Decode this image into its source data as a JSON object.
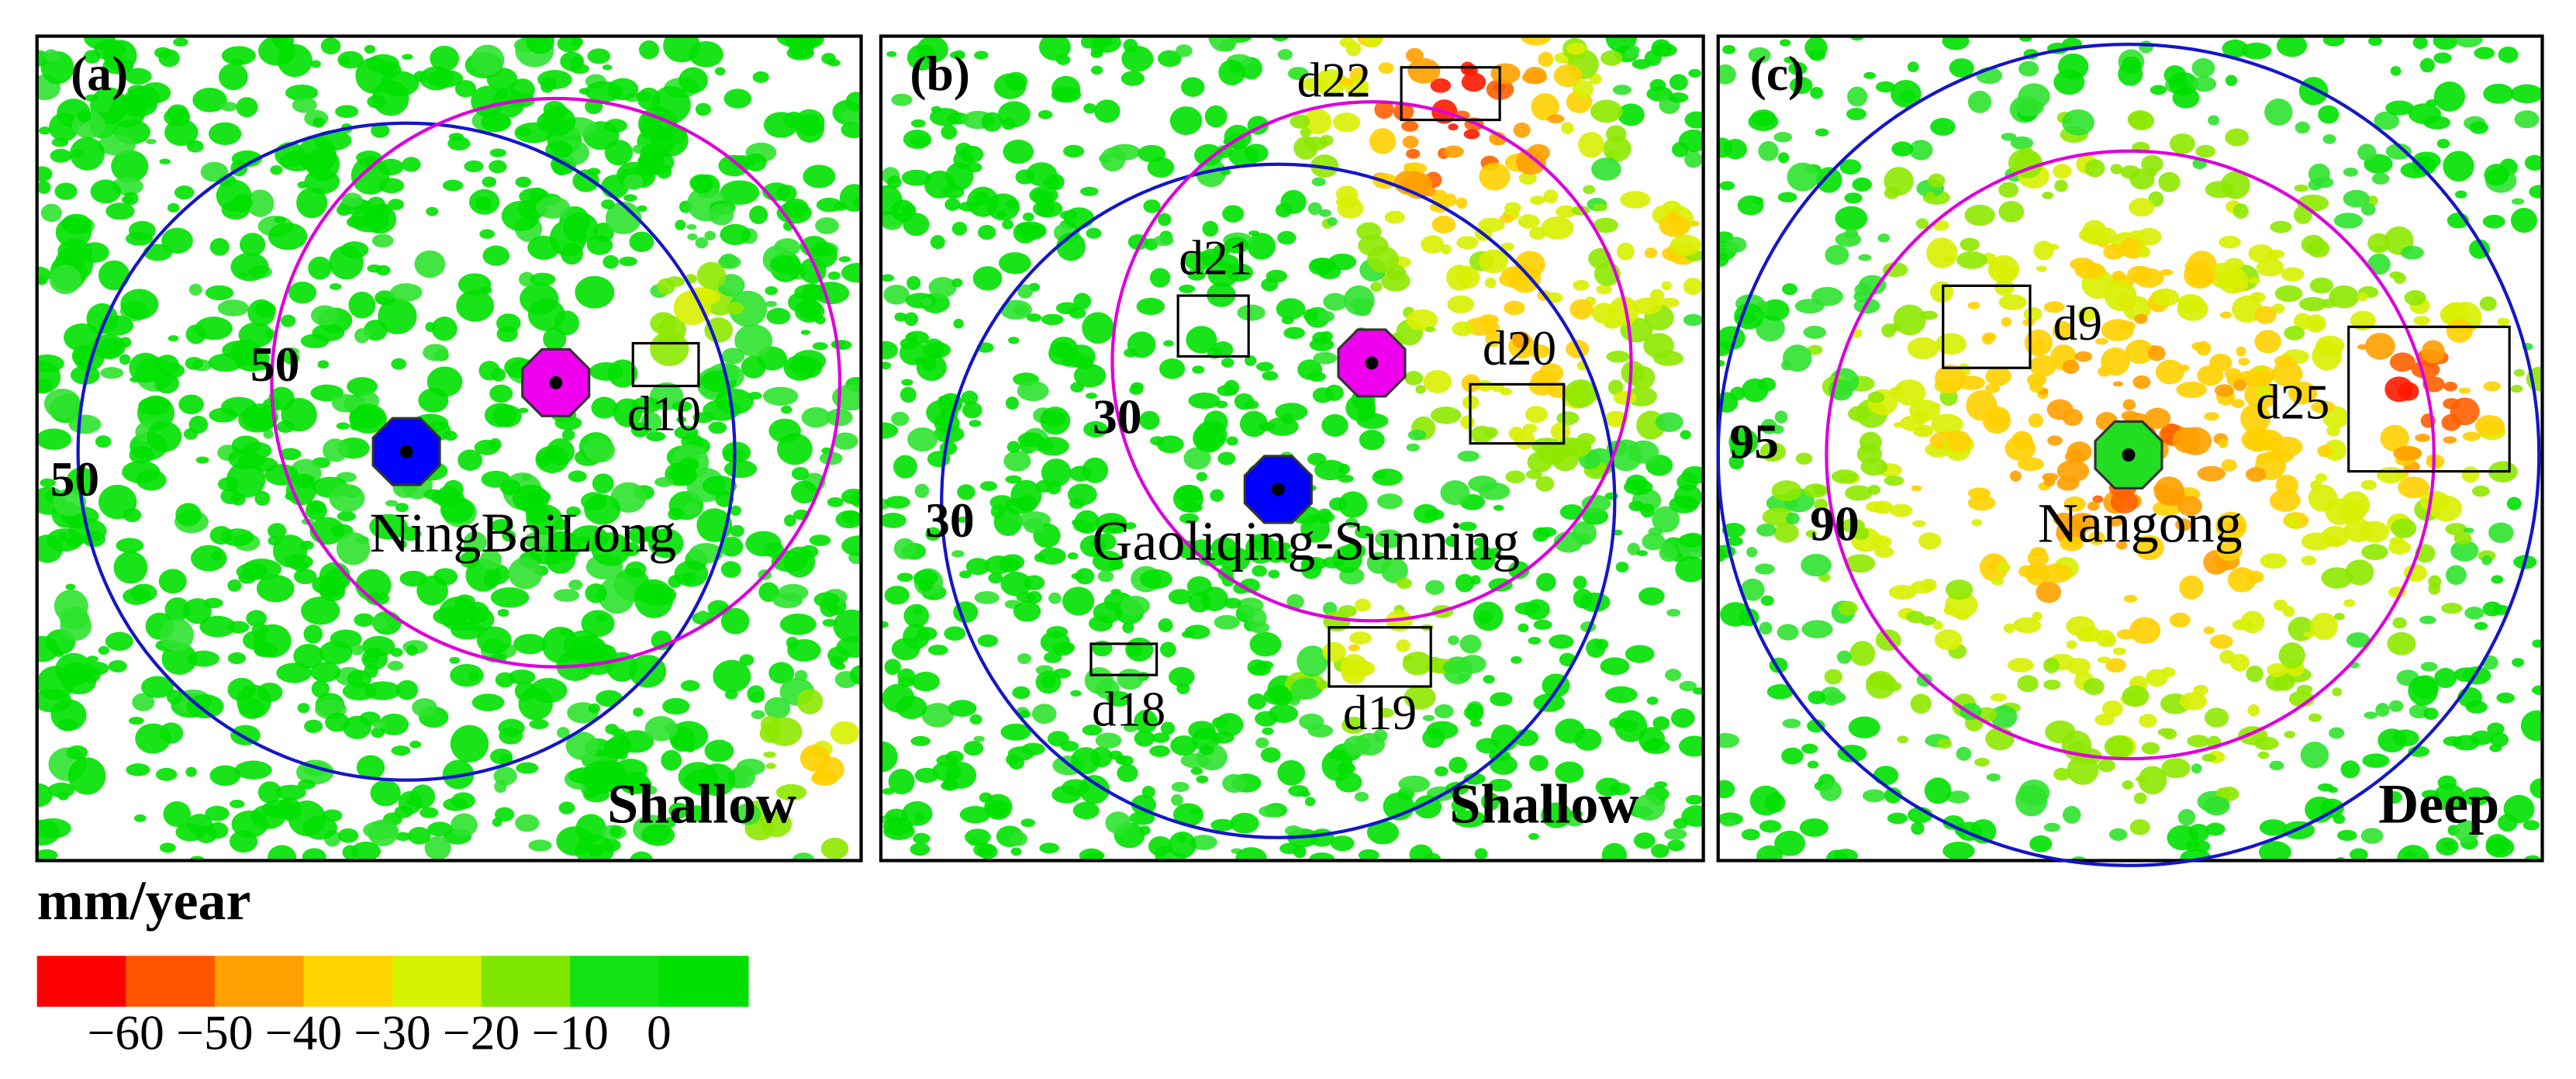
{
  "panels": [
    {
      "label": "(a)",
      "layer": "Shallow",
      "site": "NingBaiLong",
      "contours": [
        "50",
        "50"
      ],
      "boxes": [
        "d10"
      ],
      "site_color": "#0000ff"
    },
    {
      "label": "(b)",
      "layer": "Shallow",
      "site": "Gaoliqing-Sunning",
      "contours": [
        "30",
        "30"
      ],
      "boxes": [
        "d22",
        "d21",
        "d20",
        "d19",
        "d18"
      ],
      "site_color": "#0000ff"
    },
    {
      "label": "(c)",
      "layer": "Deep",
      "site": "Nangong",
      "contours": [
        "95",
        "90"
      ],
      "boxes": [
        "d9",
        "d25"
      ],
      "site_color": "#22dd22"
    }
  ],
  "legend": {
    "title": "mm/year",
    "ticks": [
      "−60",
      "−50",
      "−40",
      "−30",
      "−20",
      "−10",
      "0"
    ],
    "colors": [
      "#ff0000",
      "#ff5500",
      "#ff9f00",
      "#ffd400",
      "#d6f200",
      "#7fe600",
      "#12e212",
      "#00e000"
    ]
  }
}
